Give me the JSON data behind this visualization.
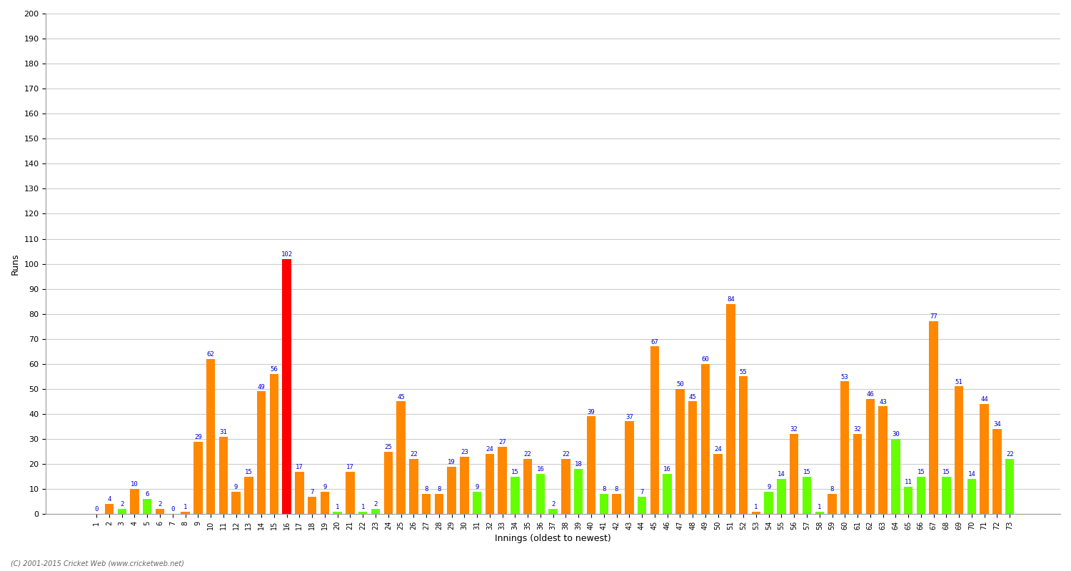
{
  "xlabel": "Innings (oldest to newest)",
  "ylabel": "Runs",
  "background_color": "#ffffff",
  "grid_color": "#cccccc",
  "bar_color_orange": "#ff8800",
  "bar_color_green": "#66ff00",
  "bar_color_red": "#ff0000",
  "label_color": "#0000cc",
  "ylim": [
    0,
    200
  ],
  "yticks": [
    0,
    10,
    20,
    30,
    40,
    50,
    60,
    70,
    80,
    90,
    100,
    110,
    120,
    130,
    140,
    150,
    160,
    170,
    180,
    190,
    200
  ],
  "innings": [
    1,
    2,
    3,
    4,
    5,
    6,
    7,
    8,
    9,
    10,
    11,
    12,
    13,
    14,
    15,
    16,
    17,
    18,
    19,
    20,
    21,
    22,
    23,
    24,
    25,
    26,
    27,
    28,
    29,
    30,
    31,
    32,
    33,
    34,
    35,
    36,
    37,
    38,
    39,
    40,
    41,
    42,
    43,
    44,
    45,
    46,
    47,
    48,
    49,
    50,
    51,
    52,
    53,
    54,
    55,
    56,
    57,
    58,
    59,
    60,
    61,
    62,
    63,
    64,
    65,
    66,
    67,
    68,
    69,
    70,
    71,
    72,
    73
  ],
  "scores": [
    0,
    4,
    2,
    10,
    6,
    2,
    0,
    1,
    29,
    62,
    31,
    9,
    15,
    49,
    56,
    102,
    17,
    7,
    9,
    1,
    17,
    1,
    2,
    25,
    45,
    22,
    8,
    8,
    19,
    23,
    9,
    24,
    27,
    15,
    22,
    16,
    2,
    22,
    18,
    39,
    8,
    8,
    37,
    7,
    67,
    16,
    50,
    45,
    60,
    24,
    84,
    55,
    1,
    9,
    14,
    32,
    15,
    1,
    8,
    53,
    32,
    46,
    43,
    30,
    11,
    15,
    77,
    15,
    51,
    14,
    44,
    34,
    22
  ],
  "is_orange": [
    false,
    true,
    false,
    true,
    false,
    true,
    false,
    true,
    true,
    true,
    true,
    true,
    true,
    true,
    true,
    false,
    true,
    true,
    true,
    false,
    true,
    false,
    false,
    true,
    true,
    true,
    true,
    true,
    true,
    true,
    false,
    true,
    true,
    false,
    true,
    false,
    false,
    true,
    false,
    true,
    false,
    true,
    true,
    false,
    true,
    false,
    true,
    true,
    true,
    true,
    true,
    true,
    true,
    false,
    false,
    true,
    false,
    false,
    true,
    true,
    true,
    true,
    true,
    false,
    false,
    false,
    true,
    false,
    true,
    false,
    true,
    true,
    false
  ],
  "is_century": [
    false,
    false,
    false,
    false,
    false,
    false,
    false,
    false,
    false,
    false,
    false,
    false,
    false,
    false,
    false,
    true,
    false,
    false,
    false,
    false,
    false,
    false,
    false,
    false,
    false,
    false,
    false,
    false,
    false,
    false,
    false,
    false,
    false,
    false,
    false,
    false,
    false,
    false,
    false,
    false,
    false,
    false,
    false,
    false,
    false,
    false,
    false,
    false,
    false,
    false,
    false,
    false,
    false,
    false,
    false,
    false,
    false,
    false,
    false,
    false,
    false,
    false,
    false,
    false,
    false,
    false,
    false,
    false,
    false,
    false,
    false,
    false,
    false
  ]
}
